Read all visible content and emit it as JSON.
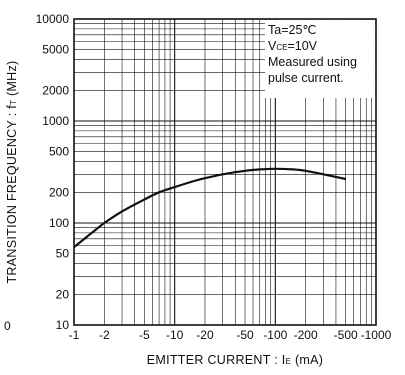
{
  "chart_data": {
    "type": "line",
    "title": "",
    "xlabel": "EMITTER CURRENT : I",
    "xlabel_sub": "E",
    "xlabel_unit": "(mA)",
    "ylabel": "TRANSITION FREQUENCY : f",
    "ylabel_sub": "T",
    "ylabel_unit": "(MHz)",
    "x_scale": "log",
    "y_scale": "log",
    "xlim": [
      -1,
      -1000
    ],
    "ylim": [
      10,
      10000
    ],
    "grid": true,
    "x_ticks": [
      {
        "value": -1,
        "label": "-1"
      },
      {
        "value": -2,
        "label": "-2"
      },
      {
        "value": -5,
        "label": "-5"
      },
      {
        "value": -10,
        "label": "-10"
      },
      {
        "value": -20,
        "label": "-20"
      },
      {
        "value": -50,
        "label": "-50"
      },
      {
        "value": -100,
        "label": "-100"
      },
      {
        "value": -200,
        "label": "-200"
      },
      {
        "value": -500,
        "label": "-500"
      },
      {
        "value": -1000,
        "label": "-1000"
      }
    ],
    "y_ticks": [
      {
        "value": 10,
        "label": "10"
      },
      {
        "value": 20,
        "label": "20"
      },
      {
        "value": 50,
        "label": "50"
      },
      {
        "value": 100,
        "label": "100"
      },
      {
        "value": 200,
        "label": "200"
      },
      {
        "value": 500,
        "label": "500"
      },
      {
        "value": 1000,
        "label": "1000"
      },
      {
        "value": 2000,
        "label": "2000"
      },
      {
        "value": 5000,
        "label": "5000"
      },
      {
        "value": 10000,
        "label": "10000"
      }
    ],
    "extra_left_label": "0",
    "conditions": [
      {
        "main": "Ta=25℃"
      },
      {
        "main": "V",
        "sub": "CE",
        "rest": "=10V"
      },
      {
        "main": "Measured using"
      },
      {
        "main": "pulse current."
      }
    ],
    "series": [
      {
        "x": [
          -1,
          -1.5,
          -2,
          -3,
          -5,
          -7,
          -10,
          -15,
          -20,
          -30,
          -50,
          -70,
          -100,
          -150,
          -200,
          -300,
          -500
        ],
        "y": [
          58,
          80,
          100,
          130,
          170,
          200,
          225,
          255,
          275,
          300,
          325,
          335,
          340,
          335,
          325,
          300,
          270
        ]
      }
    ],
    "colors": {
      "line": "#111111",
      "grid": "#111111",
      "background": "#ffffff"
    }
  }
}
